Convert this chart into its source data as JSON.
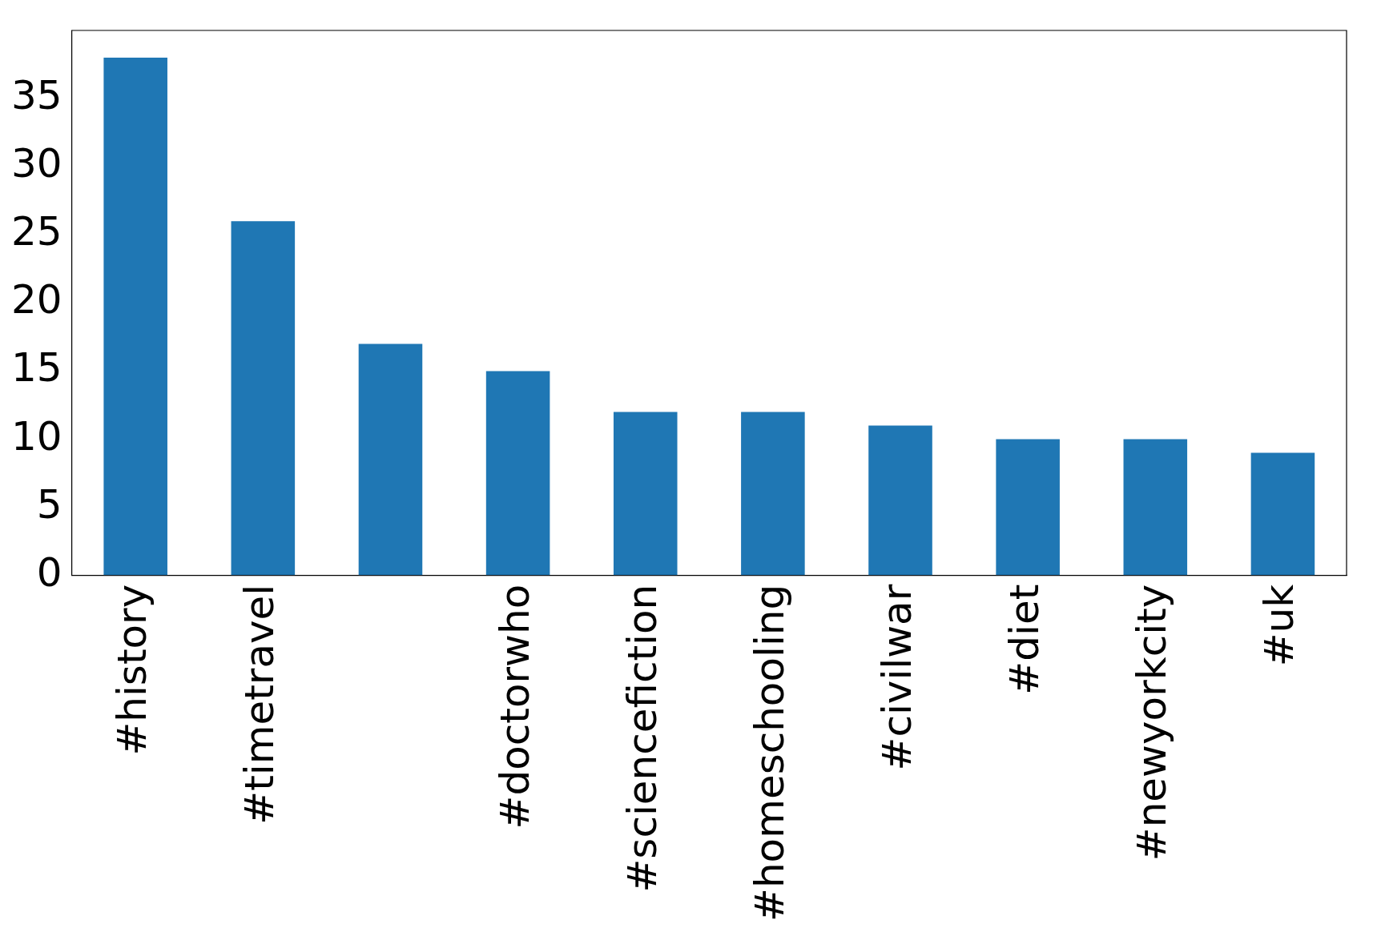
{
  "chart_data": {
    "type": "bar",
    "categories": [
      "#history",
      "#timetravel",
      null,
      "#doctorwho",
      "#sciencefiction",
      "#homeschooling",
      "#civilwar",
      "#diet",
      "#newyorkcity",
      "#uk"
    ],
    "values": [
      38,
      26,
      17,
      15,
      12,
      12,
      11,
      10,
      10,
      9
    ],
    "color": "#1f77b4",
    "ylim": [
      0,
      40
    ],
    "yticks": [
      0,
      5,
      10,
      15,
      20,
      25,
      30,
      35
    ],
    "grid": false,
    "legend": false
  }
}
